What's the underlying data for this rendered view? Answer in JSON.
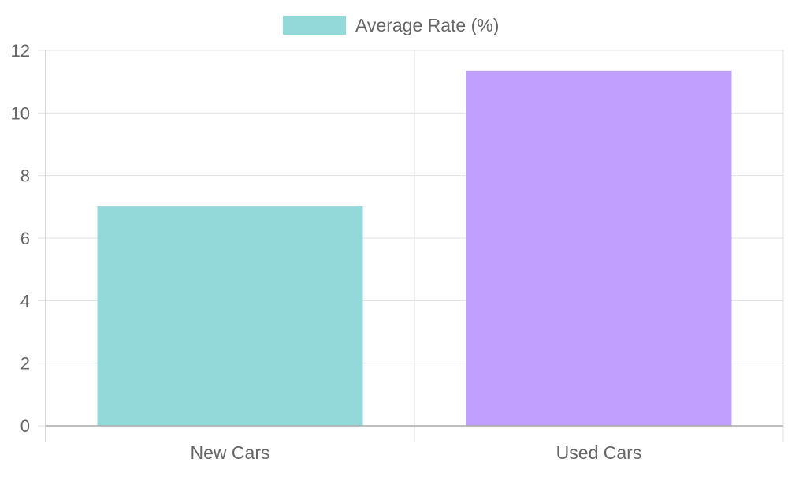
{
  "chart_data": {
    "type": "bar",
    "categories": [
      "New Cars",
      "Used Cars"
    ],
    "series": [
      {
        "name": "Average Rate (%)",
        "values": [
          7.03,
          11.35
        ],
        "colors": [
          "#93d9d9",
          "#c09fff"
        ]
      }
    ],
    "ylim": [
      0,
      12
    ],
    "yticks": [
      0,
      2,
      4,
      6,
      8,
      10,
      12
    ],
    "grid": true,
    "legend": "top-center",
    "legend_swatch_color": "#93d9d9",
    "grid_color": "#e0e0e0",
    "axis_color": "#aaaaaa"
  }
}
